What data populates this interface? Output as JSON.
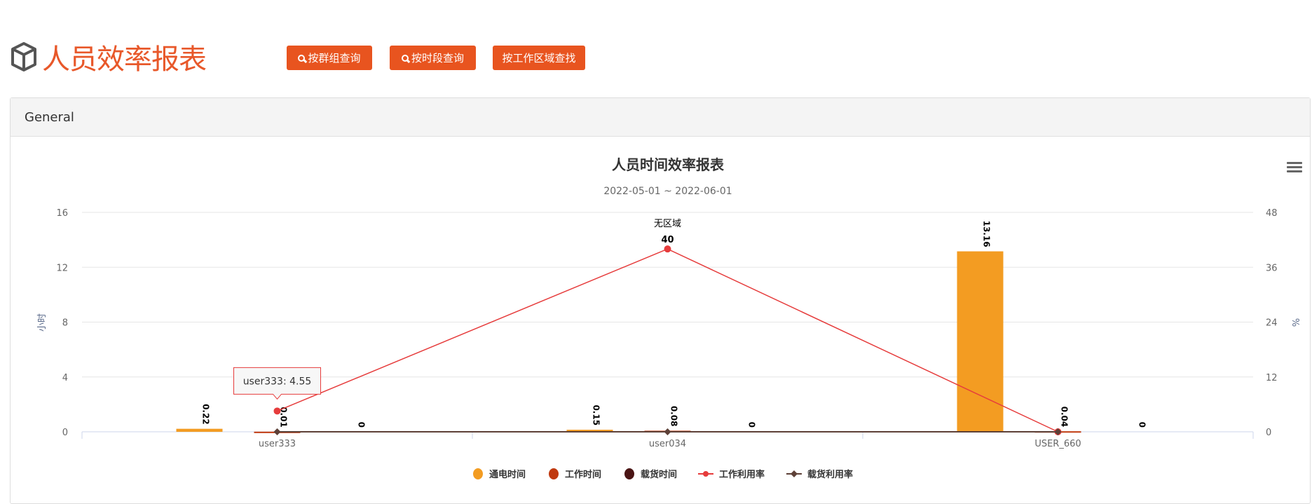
{
  "header": {
    "title": "人员效率报表",
    "icon": "cube-icon",
    "buttons": [
      {
        "label": "按群组查询",
        "icon": "search-icon"
      },
      {
        "label": "按时段查询",
        "icon": "search-icon"
      },
      {
        "label": "按工作区域查找"
      }
    ],
    "accent": "#e8541f"
  },
  "panel": {
    "title": "General"
  },
  "chart_data": {
    "type": "bar",
    "title": "人员时间效率报表",
    "subtitle": "2022-05-01 ~ 2022-06-01",
    "categories": [
      "user333",
      "user034",
      "USER_660"
    ],
    "ylabel": "小时",
    "ylabel_right": "%",
    "ylim": [
      0,
      16
    ],
    "yticks": [
      "0",
      "4",
      "8",
      "12",
      "16"
    ],
    "ylim_right": [
      0,
      48
    ],
    "yticks_right": [
      "0",
      "12",
      "24",
      "36",
      "48"
    ],
    "grid": true,
    "legend": "bottom",
    "series": [
      {
        "name": "通电时间",
        "type": "bar",
        "axis": "left",
        "color": "#f39c22",
        "values": [
          0.22,
          0.15,
          13.16
        ],
        "labels": [
          "0.22",
          "0.15",
          "13.16"
        ]
      },
      {
        "name": "工作时间",
        "type": "bar",
        "axis": "left",
        "color": "#c0390f",
        "values": [
          0.01,
          0.08,
          0.04
        ],
        "labels": [
          "0.01",
          "0.08",
          "0.04"
        ]
      },
      {
        "name": "载货时间",
        "type": "bar",
        "axis": "left",
        "color": "#4a1414",
        "values": [
          0,
          0,
          0
        ],
        "labels": [
          "0",
          "0",
          "0"
        ]
      },
      {
        "name": "工作利用率",
        "type": "line",
        "axis": "right",
        "color": "#e63c3c",
        "marker": "circle",
        "values": [
          4.55,
          40,
          0
        ],
        "labels": [
          "",
          "40",
          ""
        ]
      },
      {
        "name": "载货利用率",
        "type": "line",
        "axis": "right",
        "color": "#5d4037",
        "marker": "diamond",
        "values": [
          0,
          0,
          0
        ]
      }
    ],
    "annotations": [
      {
        "category": "user034",
        "text": "无区域"
      }
    ],
    "tooltip": {
      "text": "user333: 4.55",
      "series": "工作利用率",
      "category": "user333"
    }
  },
  "toolbar": {
    "menu_icon": "hamburger-menu-icon"
  }
}
